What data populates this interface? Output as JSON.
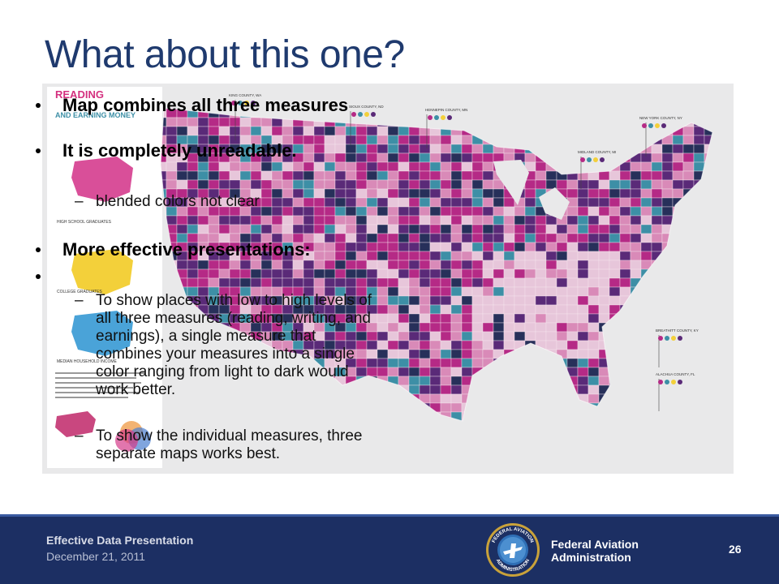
{
  "slide": {
    "title": "What about this one?"
  },
  "bullets": [
    "Map combines all three measures",
    "It is completely unreadable.",
    "More effective presentations:"
  ],
  "sub_bullets": [
    "blended colors not clear",
    "To show places with low to high levels of all three measures (reading, writing, and earnings), a single measure that combines your measures into a single color ranging from light to dark would work better.",
    "To show the individual measures, three separate maps works best."
  ],
  "figure": {
    "legend_title_line1": "READING",
    "legend_title_line2": "AND EARNING MONEY",
    "legend_section_1": "HIGH SCHOOL GRADUATES",
    "legend_section_2": "COLLEGE GRADUATES",
    "legend_section_3": "MEDIAN HOUSEHOLD INCOME",
    "callouts": [
      "KING COUNTY, WA",
      "SIOUX COUNTY, ND",
      "HENNEPIN COUNTY, MN",
      "NEW YORK COUNTY, NY",
      "MIDLAND COUNTY, MI",
      "BREATHITT COUNTY, KY",
      "ALACHUA COUNTY, FL"
    ],
    "colors": {
      "magenta": "#b52a86",
      "purple": "#5a2a78",
      "pink": "#d98ab8",
      "teal": "#3d8fa6",
      "light": "#e7c6da",
      "navy": "#27305a"
    }
  },
  "footer": {
    "presentation_title": "Effective Data Presentation",
    "date": "December 21, 2011",
    "seal_top_text": "FEDERAL AVIATION",
    "seal_bottom_text": "ADMINISTRATION",
    "agency_line1": "Federal Aviation",
    "agency_line2": "Administration",
    "page_number": "26",
    "background": "#1c2f63"
  }
}
